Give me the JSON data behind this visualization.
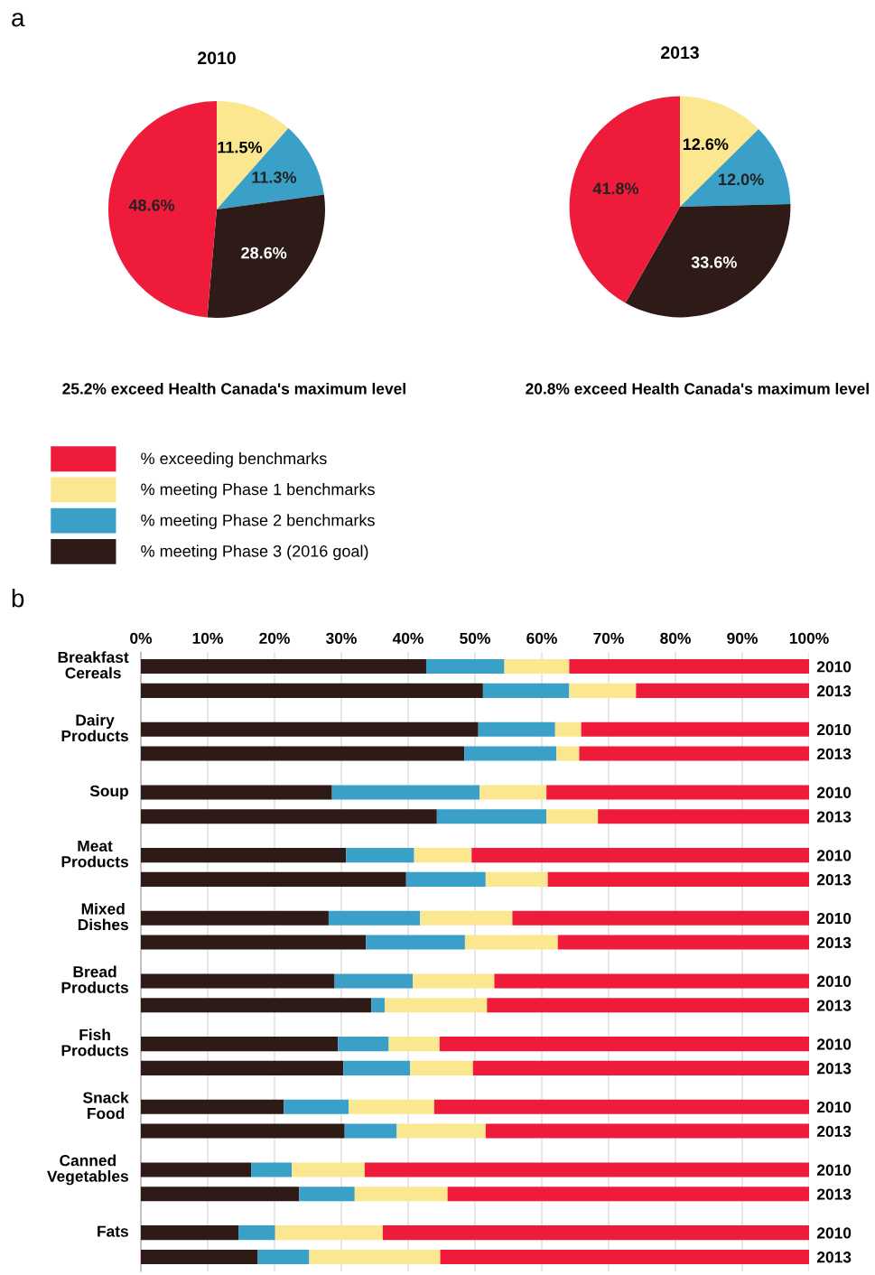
{
  "chart_data": [
    {
      "type": "pie",
      "title": "2010",
      "categories": [
        "% meeting Phase 1 benchmarks",
        "% meeting Phase 2 benchmarks",
        "% meeting Phase 3 (2016 goal)",
        "% exceeding benchmarks"
      ],
      "values": [
        11.5,
        11.3,
        28.6,
        48.6
      ],
      "colors": [
        "#fbe78f",
        "#3aa0c8",
        "#2e1a17",
        "#ee1c3a"
      ],
      "value_labels": [
        "11.5%",
        "11.3%",
        "28.6%",
        "48.6%"
      ],
      "legend": "bottom",
      "annotations": [
        "a",
        "25.2% exceed Health Canada's maximum level"
      ]
    },
    {
      "type": "pie",
      "title": "2013",
      "categories": [
        null,
        null,
        null,
        null
      ],
      "values": [
        12.6,
        12.0,
        33.6,
        41.8
      ],
      "colors": [
        "#fbe78f",
        "#3aa0c8",
        "#2e1a17",
        "#ee1c3a"
      ],
      "value_labels": [
        "12.6%",
        "12.0%",
        "33.6%",
        "41.8%"
      ],
      "annotations": [
        "20.8% exceed Health Canada's maximum level"
      ]
    },
    {
      "type": "bar",
      "orientation": "horizontal",
      "stacked": true,
      "grid": "x",
      "xlim": [
        0,
        100
      ],
      "xticks": [
        {
          "value": 0,
          "label": "0%"
        },
        {
          "value": 10,
          "label": "10%"
        },
        {
          "value": 20,
          "label": "20%"
        },
        {
          "value": 30,
          "label": "30%"
        },
        {
          "value": 40,
          "label": "40%"
        },
        {
          "value": 50,
          "label": "50%"
        },
        {
          "value": 60,
          "label": "60%"
        },
        {
          "value": 70,
          "label": "70%"
        },
        {
          "value": 80,
          "label": "80%"
        },
        {
          "value": 90,
          "label": "90%"
        },
        {
          "value": 100,
          "label": "100%"
        }
      ],
      "categories": [
        "2010",
        "2013",
        "2010",
        "2013",
        "2010",
        "2013",
        "2010",
        "2013",
        "2010",
        "2013",
        "2010",
        "2013",
        "2010",
        "2013",
        "2010",
        "2013",
        "2010",
        "2013",
        "2010",
        "2013"
      ],
      "annotations": [
        "b",
        "Breakfast\nCereals",
        "Dairy\nProducts",
        "Soup",
        "Meat\nProducts",
        "Mixed\nDishes",
        "Bread\nProducts",
        "Fish\nProducts",
        "Snack\nFood",
        "Canned\nVegetables",
        "Fats"
      ],
      "series": [
        {
          "color": "#2e1a17",
          "values": [
            42.7,
            51.2,
            50.5,
            48.4,
            28.6,
            44.3,
            30.7,
            39.7,
            28.1,
            33.7,
            29.0,
            34.5,
            29.5,
            30.3,
            21.4,
            30.5,
            16.5,
            23.7,
            14.6,
            17.5
          ]
        },
        {
          "color": "#3aa0c8",
          "values": [
            11.7,
            12.9,
            11.5,
            13.8,
            22.1,
            16.4,
            10.2,
            11.9,
            13.7,
            14.8,
            11.7,
            2.0,
            7.6,
            10.0,
            9.7,
            7.8,
            6.1,
            8.3,
            5.5,
            7.7
          ]
        },
        {
          "color": "#fbe78f",
          "values": [
            9.7,
            10.0,
            3.9,
            3.4,
            10.0,
            7.7,
            8.6,
            9.3,
            13.8,
            13.9,
            12.2,
            15.3,
            7.6,
            9.4,
            12.8,
            13.3,
            10.9,
            13.9,
            16.1,
            19.6
          ]
        },
        {
          "color": "#ee1c3a",
          "values": [
            35.9,
            25.9,
            34.1,
            34.4,
            39.3,
            31.6,
            50.5,
            39.1,
            44.4,
            37.6,
            47.1,
            48.2,
            55.3,
            50.3,
            56.1,
            48.4,
            66.5,
            54.1,
            63.8,
            55.2
          ]
        }
      ]
    }
  ]
}
